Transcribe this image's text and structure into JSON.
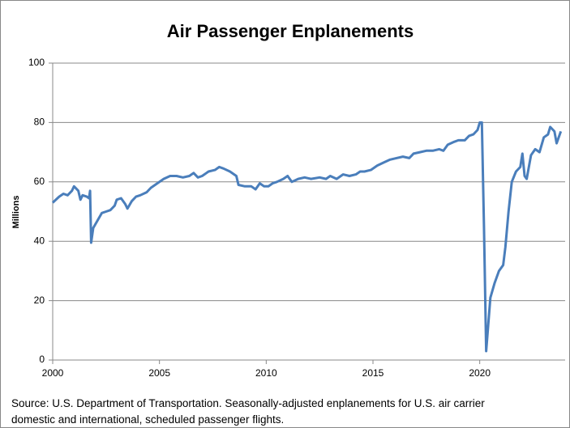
{
  "chart_data": {
    "type": "line",
    "title": "Air Passenger Enplanements",
    "y_label": "Millions",
    "source": [
      "Source: U.S. Department of Transportation. Seasonally-adjusted enplanements for U.S. air carrier",
      "domestic and international, scheduled passenger flights."
    ],
    "xlim": [
      2000,
      2024
    ],
    "xticks": [
      2000,
      2005,
      2010,
      2015,
      2020
    ],
    "ylim": [
      0,
      100
    ],
    "yticks": [
      0,
      20,
      40,
      60,
      80,
      100
    ],
    "grid": true,
    "series": [
      {
        "name": "Enplanements",
        "color": "#4a7ebb",
        "x": [
          2000.0,
          2000.3,
          2000.5,
          2000.7,
          2000.9,
          2001.0,
          2001.2,
          2001.3,
          2001.4,
          2001.6,
          2001.7,
          2001.75,
          2001.8,
          2001.9,
          2002.1,
          2002.3,
          2002.5,
          2002.7,
          2002.9,
          2003.0,
          2003.2,
          2003.4,
          2003.5,
          2003.7,
          2003.9,
          2004.1,
          2004.4,
          2004.6,
          2004.9,
          2005.2,
          2005.5,
          2005.8,
          2006.1,
          2006.4,
          2006.6,
          2006.8,
          2007.0,
          2007.3,
          2007.6,
          2007.8,
          2008.0,
          2008.3,
          2008.5,
          2008.6,
          2008.7,
          2009.0,
          2009.3,
          2009.5,
          2009.7,
          2009.9,
          2010.1,
          2010.3,
          2010.5,
          2010.8,
          2011.0,
          2011.2,
          2011.5,
          2011.8,
          2012.1,
          2012.5,
          2012.8,
          2013.0,
          2013.3,
          2013.6,
          2013.9,
          2014.2,
          2014.4,
          2014.6,
          2014.9,
          2015.2,
          2015.5,
          2015.8,
          2016.1,
          2016.4,
          2016.7,
          2016.9,
          2017.2,
          2017.5,
          2017.8,
          2018.1,
          2018.3,
          2018.5,
          2018.8,
          2019.0,
          2019.3,
          2019.5,
          2019.7,
          2019.9,
          2020.0,
          2020.1,
          2020.2,
          2020.3,
          2020.4,
          2020.5,
          2020.7,
          2020.9,
          2021.1,
          2021.2,
          2021.35,
          2021.5,
          2021.7,
          2021.9,
          2022.0,
          2022.1,
          2022.2,
          2022.4,
          2022.6,
          2022.8,
          2023.0,
          2023.2,
          2023.3,
          2023.5,
          2023.6,
          2023.7,
          2023.8
        ],
        "values": [
          53,
          55,
          56,
          55.5,
          57,
          58.5,
          57,
          54,
          55.5,
          55,
          54.5,
          57,
          39.5,
          44.5,
          47,
          49.5,
          50,
          50.5,
          52,
          54,
          54.5,
          52.5,
          51,
          53.5,
          55,
          55.5,
          56.5,
          58,
          59.5,
          61,
          62,
          62,
          61.5,
          62,
          63,
          61.5,
          62,
          63.5,
          64,
          65,
          64.5,
          63.5,
          62.5,
          62,
          59,
          58.5,
          58.5,
          57.5,
          59.5,
          58.5,
          58.5,
          59.5,
          60,
          61,
          62,
          60,
          61,
          61.5,
          61,
          61.5,
          61,
          62,
          61,
          62.5,
          62,
          62.5,
          63.5,
          63.5,
          64,
          65.5,
          66.5,
          67.5,
          68,
          68.5,
          68,
          69.5,
          70,
          70.5,
          70.5,
          71,
          70.5,
          72.5,
          73.5,
          74,
          74,
          75.5,
          76,
          77.5,
          80,
          80,
          45,
          3,
          12,
          21,
          26,
          30,
          32,
          38,
          50,
          60,
          63.5,
          65,
          69.5,
          62,
          61,
          69,
          71,
          70,
          75,
          76,
          78.5,
          77,
          73,
          75,
          77
        ]
      }
    ]
  }
}
